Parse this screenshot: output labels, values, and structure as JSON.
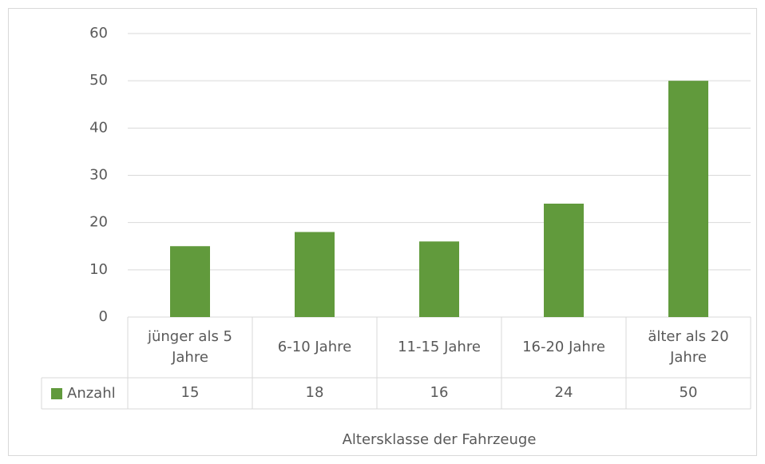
{
  "chart_data": {
    "type": "bar",
    "categories": [
      "jünger als 5 Jahre",
      "6-10 Jahre",
      "11-15 Jahre",
      "16-20 Jahre",
      "älter als 20 Jahre"
    ],
    "series": [
      {
        "name": "Anzahl",
        "color": "#619a3c",
        "values": [
          15,
          18,
          16,
          24,
          50
        ]
      }
    ],
    "ylim": [
      0,
      60
    ],
    "yticks": [
      0,
      10,
      20,
      30,
      40,
      50,
      60
    ],
    "grid": true,
    "x_label": "Altersklasse der Fahrzeuge",
    "data_table": true
  }
}
